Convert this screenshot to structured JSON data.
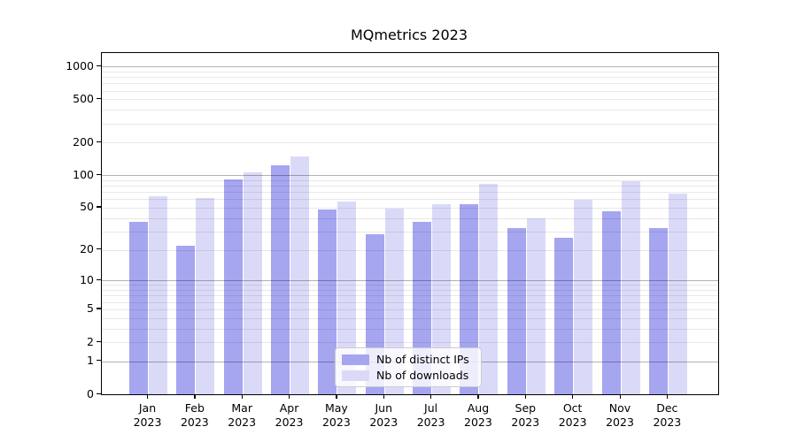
{
  "chart_data": {
    "type": "bar",
    "title": "MQmetrics 2023",
    "categories": [
      "Jan",
      "Feb",
      "Mar",
      "Apr",
      "May",
      "Jun",
      "Jul",
      "Aug",
      "Sep",
      "Oct",
      "Nov",
      "Dec"
    ],
    "category_year": "2023",
    "series": [
      {
        "name": "Nb of distinct IPs",
        "color": "#a5a5f0",
        "values": [
          37,
          22,
          92,
          123,
          48,
          28,
          37,
          54,
          32,
          26,
          46,
          32
        ]
      },
      {
        "name": "Nb of downloads",
        "color": "#dadaf8",
        "values": [
          64,
          62,
          107,
          150,
          57,
          49,
          54,
          84,
          40,
          59,
          88,
          68
        ]
      }
    ],
    "xlabel": "",
    "ylabel": "",
    "yscale": "log1p",
    "ylim": [
      0,
      1326
    ],
    "yticks": [
      0,
      1,
      2,
      5,
      10,
      20,
      50,
      100,
      200,
      500,
      1000
    ],
    "major_gridlines": [
      1,
      10,
      100,
      1000
    ],
    "minor_gridlines": [
      2,
      3,
      4,
      5,
      6,
      7,
      8,
      9,
      20,
      30,
      40,
      50,
      60,
      70,
      80,
      90,
      200,
      300,
      400,
      500,
      600,
      700,
      800,
      900
    ],
    "grid": true,
    "legend_position": "lower center"
  },
  "colors": {
    "background": "#ffffff",
    "axis": "#000000",
    "text": "#000000",
    "grid_major": "rgba(0,0,0,0.30)",
    "grid_minor": "rgba(0,0,0,0.09)",
    "legend_border": "#cccccc",
    "legend_background": "rgba(255,255,255,0.8)"
  }
}
